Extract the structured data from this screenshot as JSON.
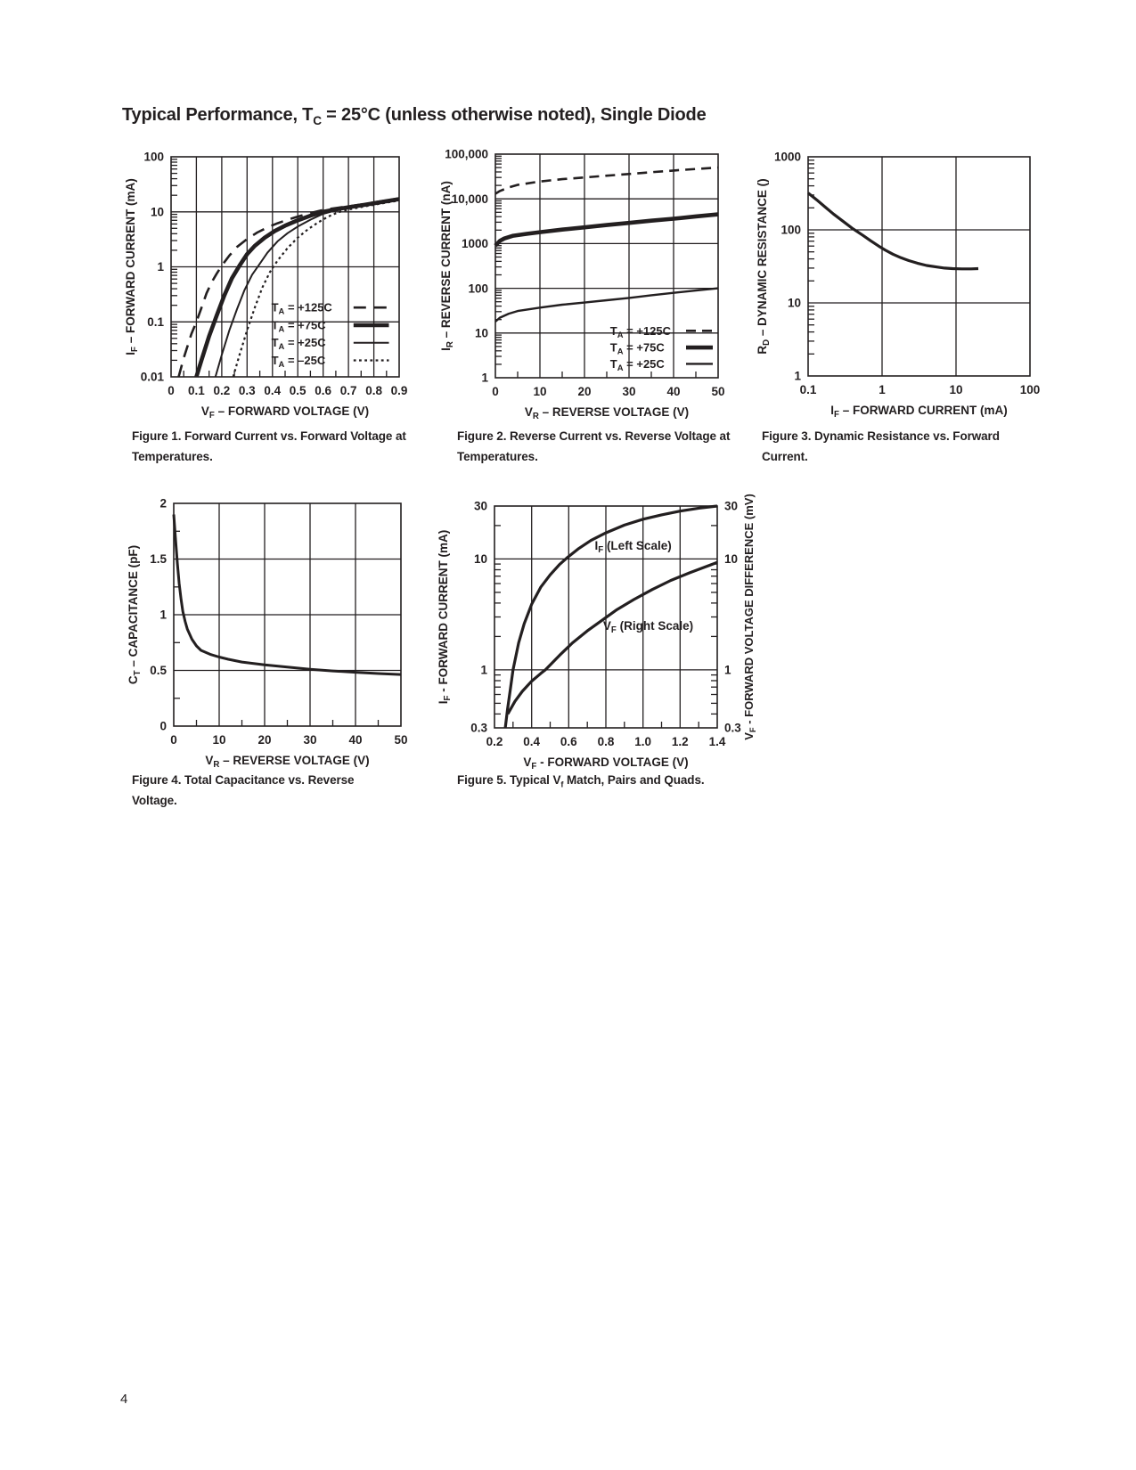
{
  "page": {
    "title": "Typical Performance, T_{C} = 25°C (unless otherwise noted), Single Diode",
    "page_number": "4"
  },
  "chart_data": [
    {
      "id": "figure-1",
      "type": "line",
      "caption": "Figure 1.  Forward Current vs. Forward Voltage at Temperatures.",
      "xlabel": "V_{F} – FORWARD VOLTAGE (V)",
      "ylabel": "I_{F} – FORWARD CURRENT (mA)",
      "xscale": "linear",
      "yscale": "log",
      "xlim": [
        0,
        0.9
      ],
      "ylim": [
        0.01,
        100
      ],
      "xticks": [
        0,
        0.1,
        0.2,
        0.3,
        0.4,
        0.5,
        0.6,
        0.7,
        0.8,
        0.9
      ],
      "xtick_labels": [
        "0",
        "0.1",
        "0.2",
        "0.3",
        "0.4",
        "0.5",
        "0.6",
        "0.7",
        "0.8",
        "0.9"
      ],
      "yticks": [
        0.01,
        0.1,
        1,
        10,
        100
      ],
      "ytick_labels": [
        "0.01",
        "0.1",
        "1",
        "10",
        "100"
      ],
      "xminor": 0.05,
      "grid": true,
      "legend_position": "inside bottom-right",
      "series": [
        {
          "name": "T_{A} = +125C",
          "style": "longdash",
          "width": 2.6,
          "points": [
            [
              0.03,
              0.01
            ],
            [
              0.05,
              0.022
            ],
            [
              0.08,
              0.06
            ],
            [
              0.1,
              0.1
            ],
            [
              0.12,
              0.18
            ],
            [
              0.14,
              0.33
            ],
            [
              0.16,
              0.52
            ],
            [
              0.18,
              0.75
            ],
            [
              0.2,
              1.05
            ],
            [
              0.23,
              1.6
            ],
            [
              0.26,
              2.3
            ],
            [
              0.3,
              3.2
            ],
            [
              0.34,
              4.2
            ],
            [
              0.38,
              5.2
            ],
            [
              0.42,
              6.2
            ],
            [
              0.46,
              7.2
            ],
            [
              0.5,
              8.2
            ],
            [
              0.55,
              9.5
            ],
            [
              0.6,
              10.8
            ],
            [
              0.65,
              11.7
            ],
            [
              0.7,
              12.6
            ],
            [
              0.75,
              13.6
            ],
            [
              0.8,
              14.8
            ],
            [
              0.85,
              16.1
            ],
            [
              0.9,
              17.5
            ]
          ]
        },
        {
          "name": "T_{A} = +75C",
          "style": "solid",
          "width": 4.6,
          "points": [
            [
              0.1,
              0.01
            ],
            [
              0.12,
              0.02
            ],
            [
              0.15,
              0.055
            ],
            [
              0.18,
              0.13
            ],
            [
              0.21,
              0.3
            ],
            [
              0.24,
              0.62
            ],
            [
              0.27,
              1.05
            ],
            [
              0.3,
              1.7
            ],
            [
              0.33,
              2.4
            ],
            [
              0.37,
              3.4
            ],
            [
              0.41,
              4.5
            ],
            [
              0.45,
              5.6
            ],
            [
              0.5,
              7.0
            ],
            [
              0.55,
              8.5
            ],
            [
              0.6,
              10.0
            ],
            [
              0.65,
              11.1
            ],
            [
              0.7,
              12.1
            ],
            [
              0.75,
              13.1
            ],
            [
              0.8,
              14.3
            ],
            [
              0.85,
              15.6
            ],
            [
              0.9,
              17.0
            ]
          ]
        },
        {
          "name": "T_{A} = +25C",
          "style": "solid",
          "width": 2,
          "points": [
            [
              0.175,
              0.01
            ],
            [
              0.2,
              0.025
            ],
            [
              0.23,
              0.07
            ],
            [
              0.26,
              0.17
            ],
            [
              0.29,
              0.38
            ],
            [
              0.32,
              0.72
            ],
            [
              0.345,
              1.05
            ],
            [
              0.38,
              1.8
            ],
            [
              0.42,
              2.9
            ],
            [
              0.46,
              4.1
            ],
            [
              0.5,
              5.4
            ],
            [
              0.55,
              7.2
            ],
            [
              0.6,
              9.2
            ],
            [
              0.65,
              10.6
            ],
            [
              0.7,
              11.7
            ],
            [
              0.75,
              12.7
            ],
            [
              0.8,
              13.9
            ],
            [
              0.85,
              15.1
            ],
            [
              0.9,
              16.5
            ]
          ]
        },
        {
          "name": "T_{A} = –25C",
          "style": "dot",
          "width": 2.2,
          "points": [
            [
              0.245,
              0.01
            ],
            [
              0.27,
              0.025
            ],
            [
              0.3,
              0.07
            ],
            [
              0.33,
              0.18
            ],
            [
              0.36,
              0.42
            ],
            [
              0.39,
              0.8
            ],
            [
              0.42,
              1.3
            ],
            [
              0.46,
              2.2
            ],
            [
              0.5,
              3.4
            ],
            [
              0.54,
              4.8
            ],
            [
              0.58,
              6.4
            ],
            [
              0.62,
              8.2
            ],
            [
              0.66,
              9.8
            ],
            [
              0.7,
              11.0
            ],
            [
              0.75,
              12.2
            ],
            [
              0.8,
              13.4
            ],
            [
              0.85,
              14.7
            ],
            [
              0.9,
              16.0
            ]
          ]
        }
      ]
    },
    {
      "id": "figure-2",
      "type": "line",
      "caption": "Figure 2.  Reverse Current vs. Reverse Voltage at Temperatures.",
      "xlabel": "V_{R} – REVERSE VOLTAGE (V)",
      "ylabel": "I_{R} – REVERSE CURRENT (nA)",
      "xscale": "linear",
      "yscale": "log",
      "xlim": [
        0,
        50
      ],
      "ylim": [
        1,
        100000
      ],
      "xticks": [
        0,
        10,
        20,
        30,
        40,
        50
      ],
      "xtick_labels": [
        "0",
        "10",
        "20",
        "30",
        "40",
        "50"
      ],
      "yticks": [
        1,
        10,
        100,
        1000,
        10000,
        100000
      ],
      "ytick_labels": [
        "1",
        "10",
        "100",
        "1000",
        "10,000",
        "100,000"
      ],
      "xminor": 5,
      "grid": true,
      "legend_position": "inside bottom-right",
      "series": [
        {
          "name": "T_{A} = +125C",
          "style": "dash",
          "width": 2.6,
          "points": [
            [
              0,
              13000
            ],
            [
              1,
              15000
            ],
            [
              3,
              18000
            ],
            [
              5,
              20500
            ],
            [
              10,
              24500
            ],
            [
              15,
              27500
            ],
            [
              20,
              30000
            ],
            [
              25,
              33000
            ],
            [
              30,
              36000
            ],
            [
              35,
              39500
            ],
            [
              40,
              43000
            ],
            [
              45,
              46500
            ],
            [
              50,
              50000
            ]
          ]
        },
        {
          "name": "T_{A} = +75C",
          "style": "solid",
          "width": 4.6,
          "points": [
            [
              0,
              900
            ],
            [
              1,
              1150
            ],
            [
              2,
              1300
            ],
            [
              4,
              1500
            ],
            [
              7,
              1650
            ],
            [
              10,
              1800
            ],
            [
              15,
              2050
            ],
            [
              20,
              2300
            ],
            [
              25,
              2600
            ],
            [
              30,
              2900
            ],
            [
              35,
              3250
            ],
            [
              40,
              3600
            ],
            [
              45,
              4050
            ],
            [
              50,
              4500
            ]
          ]
        },
        {
          "name": "T_{A} = +25C",
          "style": "solid",
          "width": 2.4,
          "points": [
            [
              0,
              18
            ],
            [
              1,
              22
            ],
            [
              3,
              27
            ],
            [
              5,
              31
            ],
            [
              10,
              37
            ],
            [
              15,
              43
            ],
            [
              20,
              48
            ],
            [
              25,
              54
            ],
            [
              30,
              61
            ],
            [
              35,
              70
            ],
            [
              40,
              79
            ],
            [
              45,
              89
            ],
            [
              50,
              100
            ]
          ]
        }
      ]
    },
    {
      "id": "figure-3",
      "type": "line",
      "caption": "Figure 3.  Dynamic Resistance vs. Forward Current.",
      "xlabel": "I_{F} – FORWARD CURRENT (mA)",
      "ylabel": "R_{D} – DYNAMIC RESISTANCE ()",
      "xscale": "log",
      "yscale": "log",
      "xlim": [
        0.1,
        100
      ],
      "ylim": [
        1,
        1000
      ],
      "xticks": [
        0.1,
        1,
        10,
        100
      ],
      "xtick_labels": [
        "0.1",
        "1",
        "10",
        "100"
      ],
      "yticks": [
        1,
        10,
        100,
        1000
      ],
      "ytick_labels": [
        "1",
        "10",
        "100",
        "1000"
      ],
      "grid": true,
      "series": [
        {
          "name": "R_D",
          "style": "solid",
          "width": 3.2,
          "points": [
            [
              0.1,
              320
            ],
            [
              0.13,
              258
            ],
            [
              0.17,
              205
            ],
            [
              0.22,
              165
            ],
            [
              0.3,
              130
            ],
            [
              0.4,
              104
            ],
            [
              0.55,
              84
            ],
            [
              0.7,
              71
            ],
            [
              0.9,
              60
            ],
            [
              1.1,
              53
            ],
            [
              1.4,
              46.5
            ],
            [
              1.8,
              41.5
            ],
            [
              2.3,
              38
            ],
            [
              3,
              35
            ],
            [
              4,
              32.5
            ],
            [
              5.5,
              31
            ],
            [
              7,
              30
            ],
            [
              9,
              29.5
            ],
            [
              12,
              29.2
            ],
            [
              16,
              29.2
            ],
            [
              20,
              29.5
            ]
          ]
        }
      ]
    },
    {
      "id": "figure-4",
      "type": "line",
      "caption": "Figure 4.  Total Capacitance vs. Reverse Voltage.",
      "xlabel": "V_{R} – REVERSE VOLTAGE (V)",
      "ylabel": "C_{T} – CAPACITANCE (pF)",
      "xscale": "linear",
      "yscale": "linear",
      "xlim": [
        0,
        50
      ],
      "ylim": [
        0,
        2
      ],
      "xticks": [
        0,
        10,
        20,
        30,
        40,
        50
      ],
      "xtick_labels": [
        "0",
        "10",
        "20",
        "30",
        "40",
        "50"
      ],
      "yticks": [
        0,
        0.5,
        1,
        1.5,
        2
      ],
      "ytick_labels": [
        "0",
        "0.5",
        "1",
        "1.5",
        "2"
      ],
      "xminor": 5,
      "yminor": 0.25,
      "grid": true,
      "series": [
        {
          "name": "C_T",
          "style": "solid",
          "width": 3,
          "points": [
            [
              0,
              1.9
            ],
            [
              0.4,
              1.68
            ],
            [
              0.8,
              1.46
            ],
            [
              1.2,
              1.28
            ],
            [
              1.6,
              1.14
            ],
            [
              2,
              1.03
            ],
            [
              2.5,
              0.94
            ],
            [
              3,
              0.87
            ],
            [
              4,
              0.78
            ],
            [
              5,
              0.72
            ],
            [
              6,
              0.68
            ],
            [
              8,
              0.645
            ],
            [
              10,
              0.62
            ],
            [
              12,
              0.6
            ],
            [
              15,
              0.575
            ],
            [
              20,
              0.55
            ],
            [
              25,
              0.53
            ],
            [
              30,
              0.51
            ],
            [
              35,
              0.495
            ],
            [
              40,
              0.483
            ],
            [
              45,
              0.472
            ],
            [
              50,
              0.463
            ]
          ]
        }
      ]
    },
    {
      "id": "figure-5",
      "type": "line",
      "caption": "Figure 5. Typical V_{f} Match, Pairs and Quads.",
      "xlabel": "V_{F} - FORWARD VOLTAGE (V)",
      "ylabel": "I_{F} - FORWARD CURRENT (mA)",
      "y2label": "V_{F} - FORWARD VOLTAGE DIFFERENCE (mV)",
      "xscale": "linear",
      "yscale": "log",
      "xlim": [
        0.2,
        1.4
      ],
      "ylim": [
        0.3,
        30
      ],
      "xticks": [
        0.2,
        0.4,
        0.6,
        0.8,
        1.0,
        1.2,
        1.4
      ],
      "xtick_labels": [
        "0.2",
        "0.4",
        "0.6",
        "0.8",
        "1.0",
        "1.2",
        "1.4"
      ],
      "yticks": [
        0.3,
        1,
        10,
        30
      ],
      "ytick_labels": [
        "0.3",
        "1",
        "10",
        "30"
      ],
      "xminor": 0.1,
      "grid": true,
      "annotations": [
        {
          "text": "I_{F} (Left Scale)",
          "x": 0.74,
          "y": 13.2
        },
        {
          "text": "V_{F} (Right Scale)",
          "x": 0.785,
          "y": 2.5
        }
      ],
      "series": [
        {
          "name": "I_F (Left Scale)",
          "style": "solid",
          "width": 3.2,
          "points": [
            [
              0.258,
              0.3
            ],
            [
              0.27,
              0.44
            ],
            [
              0.285,
              0.66
            ],
            [
              0.3,
              1.0
            ],
            [
              0.33,
              1.75
            ],
            [
              0.36,
              2.6
            ],
            [
              0.4,
              3.9
            ],
            [
              0.45,
              5.6
            ],
            [
              0.5,
              7.2
            ],
            [
              0.55,
              8.9
            ],
            [
              0.59,
              10.2
            ],
            [
              0.65,
              12.3
            ],
            [
              0.72,
              14.7
            ],
            [
              0.8,
              17.2
            ],
            [
              0.9,
              20.2
            ],
            [
              1.0,
              22.8
            ],
            [
              1.1,
              25.0
            ],
            [
              1.2,
              27.0
            ],
            [
              1.3,
              28.7
            ],
            [
              1.4,
              30.0
            ]
          ]
        },
        {
          "name": "V_F (Right Scale)",
          "style": "solid",
          "width": 3.2,
          "points": [
            [
              0.272,
              0.4
            ],
            [
              0.31,
              0.52
            ],
            [
              0.35,
              0.64
            ],
            [
              0.4,
              0.79
            ],
            [
              0.45,
              0.93
            ],
            [
              0.474,
              1.0
            ],
            [
              0.55,
              1.35
            ],
            [
              0.62,
              1.75
            ],
            [
              0.7,
              2.25
            ],
            [
              0.78,
              2.8
            ],
            [
              0.86,
              3.5
            ],
            [
              0.95,
              4.3
            ],
            [
              1.05,
              5.3
            ],
            [
              1.15,
              6.4
            ],
            [
              1.25,
              7.5
            ],
            [
              1.33,
              8.4
            ],
            [
              1.4,
              9.3
            ]
          ]
        }
      ]
    }
  ]
}
